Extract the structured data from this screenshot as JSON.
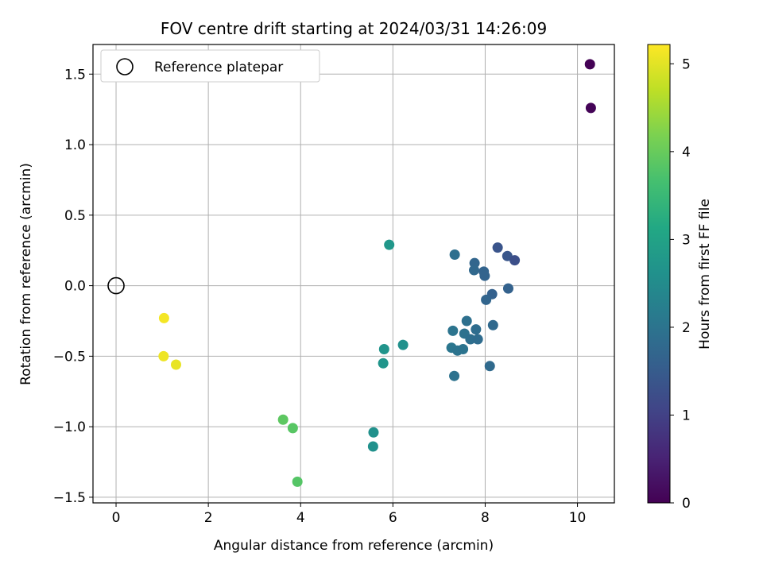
{
  "chart_data": {
    "type": "scatter",
    "title": "FOV centre drift starting at 2024/03/31 14:26:09",
    "xlabel": "Angular distance from reference (arcmin)",
    "ylabel": "Rotation from reference (arcmin)",
    "xlim": [
      -0.5,
      10.8
    ],
    "ylim": [
      -1.54,
      1.71
    ],
    "xticks": [
      0,
      2,
      4,
      6,
      8,
      10
    ],
    "xtick_labels": [
      "0",
      "2",
      "4",
      "6",
      "8",
      "10"
    ],
    "yticks": [
      -1.5,
      -1.0,
      -0.5,
      0.0,
      0.5,
      1.0,
      1.5
    ],
    "ytick_labels": [
      "−1.5",
      "−1.0",
      "−0.5",
      "0.0",
      "0.5",
      "1.0",
      "1.5"
    ],
    "grid": true,
    "legend": {
      "position": "top-left",
      "entries": [
        "Reference platepar"
      ]
    },
    "reference_point": {
      "x": 0.0,
      "y": 0.0,
      "label": "Reference platepar"
    },
    "colorbar": {
      "label": "Hours from first FF file",
      "min": 0,
      "max": 5.22,
      "ticks": [
        0,
        1,
        2,
        3,
        4,
        5
      ],
      "tick_labels": [
        "0",
        "1",
        "2",
        "3",
        "4",
        "5"
      ],
      "colormap": "viridis"
    },
    "points": [
      {
        "x": 10.27,
        "y": 1.57,
        "c": 0.02
      },
      {
        "x": 10.29,
        "y": 1.26,
        "c": 0.05
      },
      {
        "x": 8.27,
        "y": 0.27,
        "c": 1.35
      },
      {
        "x": 8.48,
        "y": 0.21,
        "c": 1.4
      },
      {
        "x": 8.64,
        "y": 0.18,
        "c": 1.25
      },
      {
        "x": 7.34,
        "y": 0.22,
        "c": 1.9
      },
      {
        "x": 7.77,
        "y": 0.16,
        "c": 1.72
      },
      {
        "x": 7.76,
        "y": 0.11,
        "c": 1.75
      },
      {
        "x": 7.97,
        "y": 0.1,
        "c": 1.68
      },
      {
        "x": 7.99,
        "y": 0.07,
        "c": 1.66
      },
      {
        "x": 8.5,
        "y": -0.02,
        "c": 1.62
      },
      {
        "x": 8.15,
        "y": -0.06,
        "c": 1.6
      },
      {
        "x": 8.02,
        "y": -0.1,
        "c": 1.7
      },
      {
        "x": 7.6,
        "y": -0.25,
        "c": 1.92
      },
      {
        "x": 8.17,
        "y": -0.28,
        "c": 1.78
      },
      {
        "x": 7.3,
        "y": -0.32,
        "c": 2.0
      },
      {
        "x": 7.8,
        "y": -0.31,
        "c": 1.86
      },
      {
        "x": 7.55,
        "y": -0.34,
        "c": 1.95
      },
      {
        "x": 7.68,
        "y": -0.38,
        "c": 1.88
      },
      {
        "x": 7.84,
        "y": -0.38,
        "c": 1.84
      },
      {
        "x": 7.27,
        "y": -0.44,
        "c": 2.05
      },
      {
        "x": 7.4,
        "y": -0.46,
        "c": 2.0
      },
      {
        "x": 7.52,
        "y": -0.45,
        "c": 1.98
      },
      {
        "x": 7.33,
        "y": -0.64,
        "c": 1.96
      },
      {
        "x": 8.1,
        "y": -0.57,
        "c": 1.8
      },
      {
        "x": 5.92,
        "y": 0.29,
        "c": 2.75
      },
      {
        "x": 6.22,
        "y": -0.42,
        "c": 2.62
      },
      {
        "x": 5.81,
        "y": -0.45,
        "c": 2.68
      },
      {
        "x": 5.79,
        "y": -0.55,
        "c": 2.7
      },
      {
        "x": 5.58,
        "y": -1.04,
        "c": 2.6
      },
      {
        "x": 5.57,
        "y": -1.14,
        "c": 2.62
      },
      {
        "x": 3.62,
        "y": -0.95,
        "c": 3.9
      },
      {
        "x": 3.83,
        "y": -1.01,
        "c": 3.85
      },
      {
        "x": 3.93,
        "y": -1.39,
        "c": 3.82
      },
      {
        "x": 1.04,
        "y": -0.23,
        "c": 5.15
      },
      {
        "x": 1.03,
        "y": -0.5,
        "c": 5.1
      },
      {
        "x": 1.3,
        "y": -0.56,
        "c": 5.05
      }
    ]
  }
}
